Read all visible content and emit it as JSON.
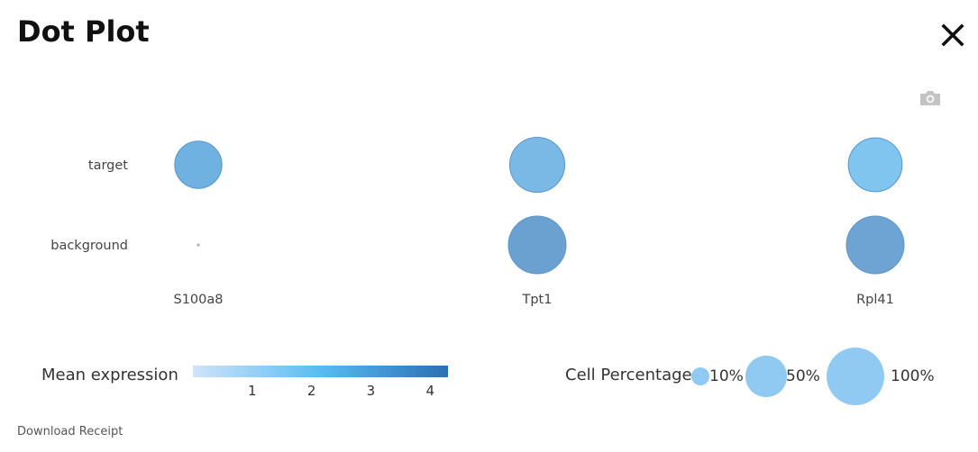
{
  "header": {
    "title": "Dot Plot",
    "close_icon": "close-icon",
    "camera_icon": "camera-icon"
  },
  "chart_data": {
    "type": "dot",
    "genes": [
      "S100a8",
      "Tpt1",
      "Rpl41"
    ],
    "groups": [
      "target",
      "background"
    ],
    "points": [
      {
        "group": "target",
        "gene": "S100a8",
        "cell_percentage": 67,
        "mean_expression": 2.5,
        "color": "#6fb1e0"
      },
      {
        "group": "target",
        "gene": "Tpt1",
        "cell_percentage": 91,
        "mean_expression": 2.2,
        "color": "#7ab9e6"
      },
      {
        "group": "target",
        "gene": "Rpl41",
        "cell_percentage": 87,
        "mean_expression": 1.8,
        "color": "#7fc5f0"
      },
      {
        "group": "background",
        "gene": "S100a8",
        "cell_percentage": 0.3,
        "mean_expression": 1.0,
        "color": "#bbbbbb"
      },
      {
        "group": "background",
        "gene": "Tpt1",
        "cell_percentage": 100,
        "mean_expression": 3.2,
        "color": "#6aa1d1"
      },
      {
        "group": "background",
        "gene": "Rpl41",
        "cell_percentage": 100,
        "mean_expression": 3.0,
        "color": "#6ea4d4"
      }
    ],
    "color_legend": {
      "title": "Mean expression",
      "ticks": [
        "1",
        "2",
        "3",
        "4"
      ],
      "tick_values": [
        1,
        2,
        3,
        4
      ],
      "range": [
        0,
        4.3
      ],
      "colors": [
        "#cfe4fa",
        "#58bcf2",
        "#2c6fb4"
      ]
    },
    "size_legend": {
      "title": "Cell Percentage:",
      "items": [
        {
          "label": "10%",
          "value": 10
        },
        {
          "label": "50%",
          "value": 50
        },
        {
          "label": "100%",
          "value": 100
        }
      ]
    }
  },
  "footer": {
    "download_label": "Download Receipt"
  }
}
